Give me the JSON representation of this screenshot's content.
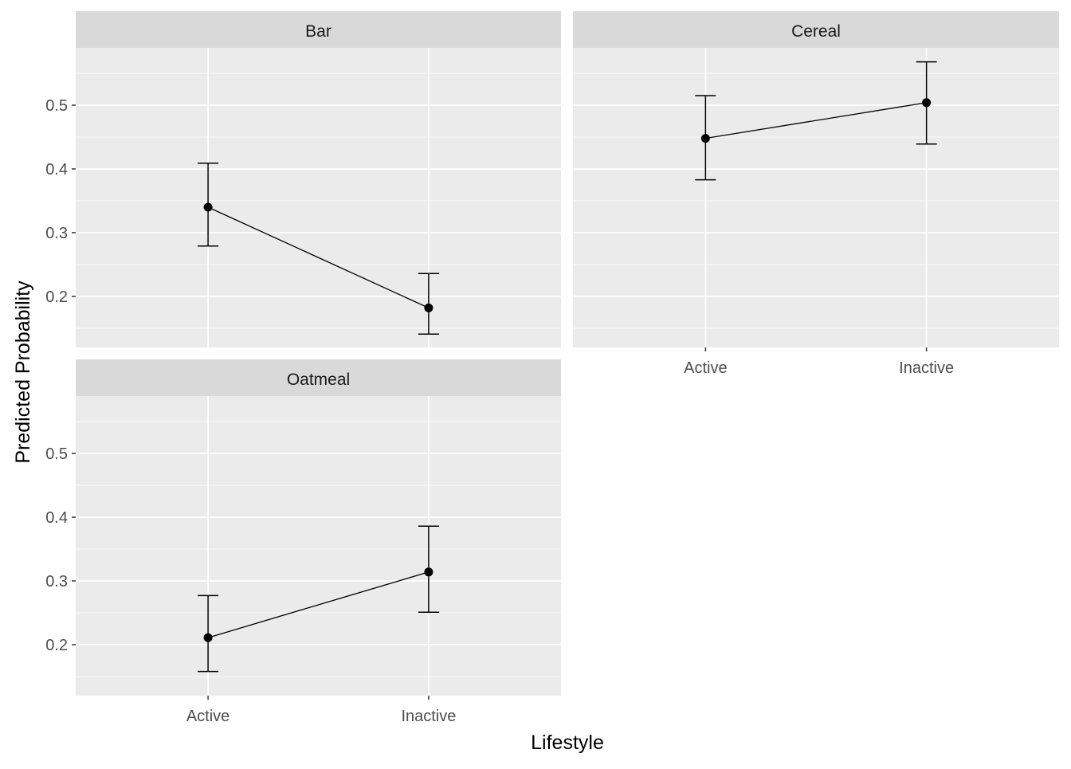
{
  "chart_data": {
    "type": "line",
    "xlabel": "Lifestyle",
    "ylabel": "Predicted Probability",
    "categories": [
      "Active",
      "Inactive"
    ],
    "ylim": [
      0.12,
      0.59
    ],
    "yticks": [
      0.2,
      0.3,
      0.4,
      0.5
    ],
    "ytick_labels": [
      "0.2",
      "0.3",
      "0.4",
      "0.5"
    ],
    "grid": true,
    "legend": "none",
    "colors": {
      "panel_bg": "#ebebeb",
      "strip_bg": "#d9d9d9",
      "grid": "#ffffff",
      "marks": "#000000"
    },
    "panels": [
      {
        "facet": "Bar",
        "values": [
          0.34,
          0.182
        ],
        "lower": [
          0.279,
          0.141
        ],
        "upper": [
          0.409,
          0.236
        ]
      },
      {
        "facet": "Cereal",
        "values": [
          0.448,
          0.504
        ],
        "lower": [
          0.383,
          0.439
        ],
        "upper": [
          0.515,
          0.568
        ]
      },
      {
        "facet": "Oatmeal",
        "values": [
          0.211,
          0.314
        ],
        "lower": [
          0.158,
          0.251
        ],
        "upper": [
          0.277,
          0.386
        ]
      }
    ]
  }
}
